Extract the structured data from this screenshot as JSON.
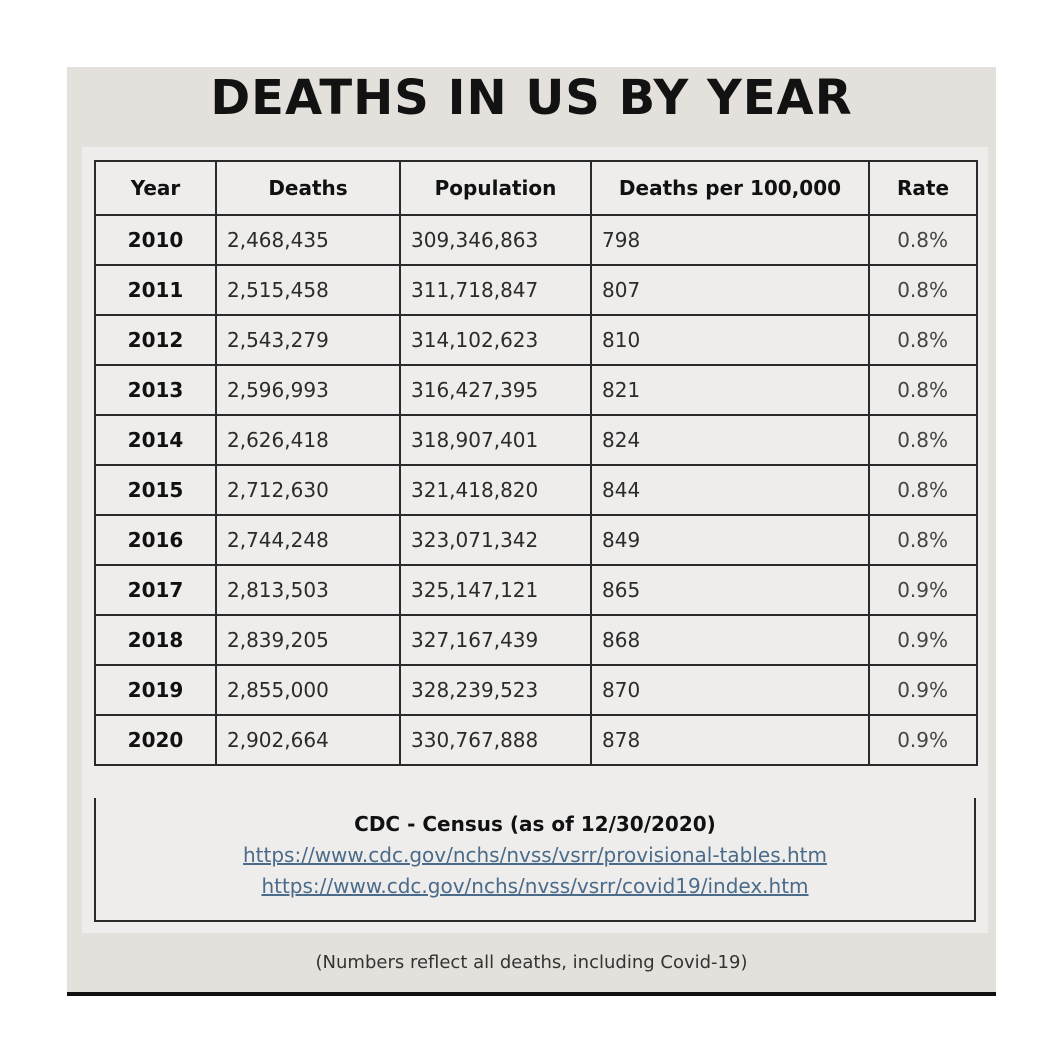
{
  "title": "DEATHS IN US BY YEAR",
  "columns": [
    "Year",
    "Deaths",
    "Population",
    "Deaths per 100,000",
    "Rate"
  ],
  "rows": [
    {
      "year": "2010",
      "deaths": "2,468,435",
      "population": "309,346,863",
      "per100k": "798",
      "rate": "0.8%"
    },
    {
      "year": "2011",
      "deaths": "2,515,458",
      "population": "311,718,847",
      "per100k": "807",
      "rate": "0.8%"
    },
    {
      "year": "2012",
      "deaths": "2,543,279",
      "population": "314,102,623",
      "per100k": "810",
      "rate": "0.8%"
    },
    {
      "year": "2013",
      "deaths": "2,596,993",
      "population": "316,427,395",
      "per100k": "821",
      "rate": "0.8%"
    },
    {
      "year": "2014",
      "deaths": "2,626,418",
      "population": "318,907,401",
      "per100k": "824",
      "rate": "0.8%"
    },
    {
      "year": "2015",
      "deaths": "2,712,630",
      "population": "321,418,820",
      "per100k": "844",
      "rate": "0.8%"
    },
    {
      "year": "2016",
      "deaths": "2,744,248",
      "population": "323,071,342",
      "per100k": "849",
      "rate": "0.8%"
    },
    {
      "year": "2017",
      "deaths": "2,813,503",
      "population": "325,147,121",
      "per100k": "865",
      "rate": "0.9%"
    },
    {
      "year": "2018",
      "deaths": "2,839,205",
      "population": "327,167,439",
      "per100k": "868",
      "rate": "0.9%"
    },
    {
      "year": "2019",
      "deaths": "2,855,000",
      "population": "328,239,523",
      "per100k": "870",
      "rate": "0.9%"
    },
    {
      "year": "2020",
      "deaths": "2,902,664",
      "population": "330,767,888",
      "per100k": "878",
      "rate": "0.9%"
    }
  ],
  "source": {
    "title": "CDC - Census (as of 12/30/2020)",
    "links": [
      "https://www.cdc.gov/nchs/nvss/vsrr/provisional-tables.htm",
      "https://www.cdc.gov/nchs/nvss/vsrr/covid19/index.htm"
    ]
  },
  "note": "(Numbers reflect all deaths, including Covid-19)"
}
